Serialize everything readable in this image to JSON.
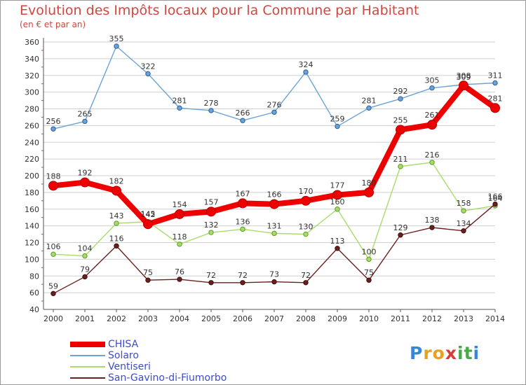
{
  "title": "Evolution des Impôts locaux pour la Commune par Habitant",
  "subtitle": "(en € et par an)",
  "colors": {
    "CHISA": "#ee0000",
    "Solaro": "#6ba3d6",
    "Ventiseri": "#a8dc6a",
    "San-Gavino-di-Fiumorbo": "#6b1f1f",
    "grid": "#cfcfcf",
    "axis": "#555555",
    "text": "#333333"
  },
  "chart_data": {
    "type": "line",
    "x": [
      "2000",
      "2001",
      "2002",
      "2003",
      "2004",
      "2005",
      "2006",
      "2007",
      "2008",
      "2009",
      "2010",
      "2011",
      "2012",
      "2013",
      "2014"
    ],
    "ylim": [
      40,
      360
    ],
    "yticks": [
      40,
      60,
      80,
      100,
      120,
      140,
      160,
      180,
      200,
      220,
      240,
      260,
      280,
      300,
      320,
      340,
      360
    ],
    "grid": true,
    "legend_position": "bottom-left",
    "series": [
      {
        "name": "CHISA",
        "values": [
          188,
          192,
          182,
          142,
          154,
          157,
          167,
          166,
          170,
          177,
          180,
          255,
          261,
          308,
          281
        ],
        "labels": [
          "188",
          "192",
          "182",
          "142",
          "154",
          "157",
          "167",
          "166",
          "170",
          "177",
          "180",
          "255",
          "261",
          "308",
          "281"
        ]
      },
      {
        "name": "Solaro",
        "values": [
          256,
          265,
          355,
          322,
          281,
          278,
          266,
          276,
          324,
          259,
          281,
          292,
          305,
          309,
          311
        ],
        "labels": [
          "256",
          "265",
          "355",
          "322",
          "281",
          "278",
          "266",
          "276",
          "324",
          "259",
          "281",
          "292",
          "305",
          "309",
          "311"
        ]
      },
      {
        "name": "Ventiseri",
        "values": [
          106,
          104,
          143,
          145,
          118,
          132,
          136,
          131,
          130,
          160,
          100,
          211,
          216,
          158,
          164
        ],
        "labels": [
          "106",
          "104",
          "143",
          "145",
          "118",
          "132",
          "136",
          "131",
          "130",
          "160",
          "100",
          "211",
          "216",
          "158",
          "164"
        ]
      },
      {
        "name": "San-Gavino-di-Fiumorbo",
        "values": [
          59,
          79,
          116,
          75,
          76,
          72,
          72,
          73,
          72,
          113,
          75,
          129,
          138,
          134,
          166
        ],
        "labels": [
          "59",
          "79",
          "116",
          "75",
          "76",
          "72",
          "72",
          "73",
          "72",
          "113",
          "75",
          "129",
          "138",
          "134",
          "166"
        ]
      }
    ]
  },
  "legend": [
    "CHISA",
    "Solaro",
    "Ventiseri",
    "San-Gavino-di-Fiumorbo"
  ],
  "logo": {
    "letters": [
      "P",
      "r",
      "o",
      "x",
      "i",
      "t",
      "i"
    ],
    "colors": [
      "#3a86d6",
      "#e8a020",
      "#e8a020",
      "#d63c3c",
      "#4aa84a",
      "#4aa84a",
      "#3a86d6"
    ]
  }
}
